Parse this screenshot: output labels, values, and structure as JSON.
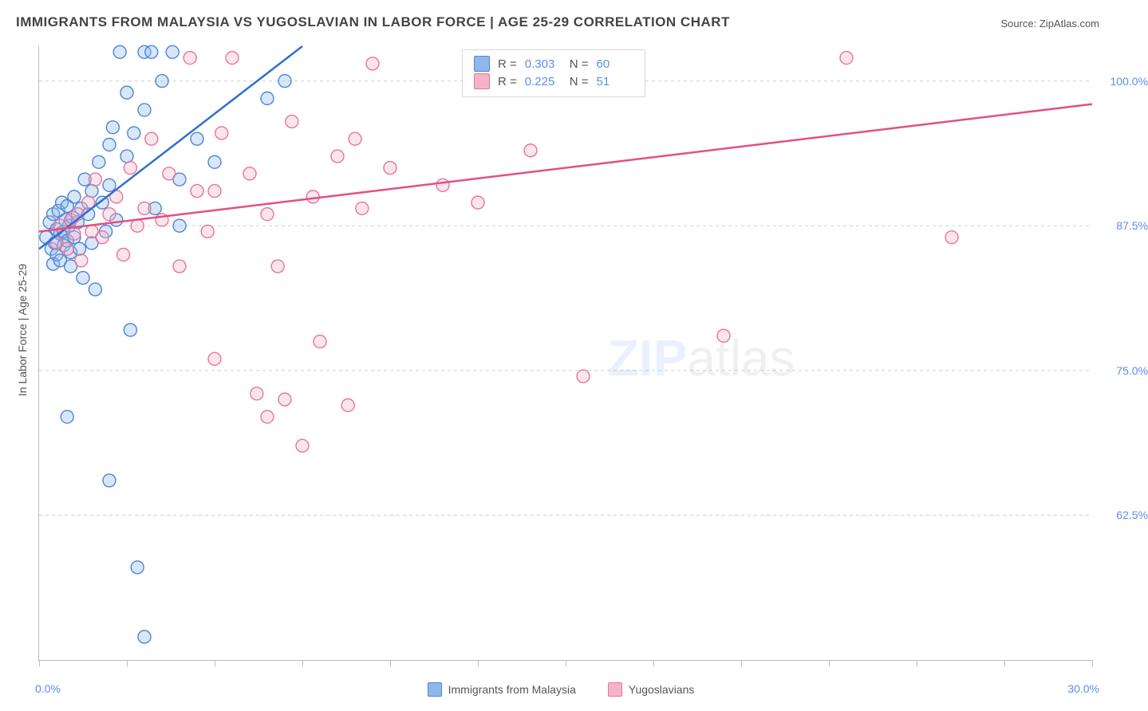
{
  "title": "IMMIGRANTS FROM MALAYSIA VS YUGOSLAVIAN IN LABOR FORCE | AGE 25-29 CORRELATION CHART",
  "source": "Source: ZipAtlas.com",
  "y_axis_label": "In Labor Force | Age 25-29",
  "watermark": {
    "text_a": "ZIP",
    "text_b": "atlas",
    "fontsize": 64
  },
  "chart": {
    "type": "scatter",
    "background_color": "#ffffff",
    "grid_color": "#cfcfcf",
    "axis_color": "#bbbbbb",
    "tick_label_color": "#5b8def",
    "axis_label_color": "#555555",
    "title_fontsize": 17,
    "tick_fontsize": 14,
    "xlim": [
      0,
      30
    ],
    "ylim": [
      50,
      103
    ],
    "xticks": [
      0,
      2.5,
      5,
      7.5,
      10,
      12.5,
      15,
      17.5,
      20,
      22.5,
      25,
      27.5,
      30
    ],
    "xticklabels_shown": {
      "0": "0.0%",
      "30": "30.0%"
    },
    "yticks": [
      62.5,
      75.0,
      87.5,
      100.0
    ],
    "ytick_format": "{v}%",
    "marker_radius": 8,
    "marker_fill_opacity": 0.35,
    "marker_stroke_width": 1.4,
    "trend_line_width": 2.5,
    "series": [
      {
        "key": "malaysia",
        "label": "Immigrants from Malaysia",
        "fill": "#8fb7ea",
        "stroke": "#4b86d6",
        "line_color": "#2f6fd0",
        "R": 0.303,
        "N": 60,
        "trend": {
          "x1": 0,
          "y1": 85.5,
          "x2": 7.5,
          "y2": 103.0
        },
        "points": [
          [
            0.2,
            86.5
          ],
          [
            0.3,
            87.8
          ],
          [
            0.35,
            85.5
          ],
          [
            0.4,
            84.2
          ],
          [
            0.4,
            88.5
          ],
          [
            0.45,
            86.0
          ],
          [
            0.5,
            87.2
          ],
          [
            0.5,
            85.0
          ],
          [
            0.55,
            88.8
          ],
          [
            0.6,
            86.8
          ],
          [
            0.6,
            84.5
          ],
          [
            0.65,
            89.5
          ],
          [
            0.7,
            87.0
          ],
          [
            0.7,
            85.8
          ],
          [
            0.75,
            88.0
          ],
          [
            0.8,
            86.2
          ],
          [
            0.8,
            89.2
          ],
          [
            0.85,
            87.5
          ],
          [
            0.9,
            85.2
          ],
          [
            0.9,
            84.0
          ],
          [
            0.95,
            88.2
          ],
          [
            1.0,
            86.5
          ],
          [
            1.0,
            90.0
          ],
          [
            1.1,
            87.8
          ],
          [
            1.15,
            85.5
          ],
          [
            1.2,
            89.0
          ],
          [
            1.25,
            83.0
          ],
          [
            1.3,
            91.5
          ],
          [
            1.4,
            88.5
          ],
          [
            1.5,
            86.0
          ],
          [
            1.5,
            90.5
          ],
          [
            1.6,
            82.0
          ],
          [
            1.7,
            93.0
          ],
          [
            1.8,
            89.5
          ],
          [
            1.9,
            87.0
          ],
          [
            2.0,
            94.5
          ],
          [
            2.0,
            91.0
          ],
          [
            2.1,
            96.0
          ],
          [
            2.2,
            88.0
          ],
          [
            2.3,
            102.5
          ],
          [
            2.5,
            93.5
          ],
          [
            2.5,
            99.0
          ],
          [
            2.6,
            78.5
          ],
          [
            2.7,
            95.5
          ],
          [
            3.0,
            102.5
          ],
          [
            3.0,
            97.5
          ],
          [
            3.2,
            102.5
          ],
          [
            3.3,
            89.0
          ],
          [
            3.5,
            100.0
          ],
          [
            3.8,
            102.5
          ],
          [
            4.0,
            91.5
          ],
          [
            4.0,
            87.5
          ],
          [
            4.5,
            95.0
          ],
          [
            5.0,
            93.0
          ],
          [
            6.5,
            98.5
          ],
          [
            7.0,
            100.0
          ],
          [
            0.8,
            71.0
          ],
          [
            2.0,
            65.5
          ],
          [
            2.8,
            58.0
          ],
          [
            3.0,
            52.0
          ]
        ]
      },
      {
        "key": "yugoslavia",
        "label": "Yugoslavians",
        "fill": "#f4b4c8",
        "stroke": "#e8749c",
        "line_color": "#e24f85",
        "R": 0.225,
        "N": 51,
        "trend": {
          "x1": 0,
          "y1": 87.0,
          "x2": 30.0,
          "y2": 98.0
        },
        "points": [
          [
            0.5,
            86.0
          ],
          [
            0.6,
            87.5
          ],
          [
            0.8,
            85.5
          ],
          [
            0.9,
            88.0
          ],
          [
            1.0,
            86.8
          ],
          [
            1.1,
            88.5
          ],
          [
            1.2,
            84.5
          ],
          [
            1.4,
            89.5
          ],
          [
            1.5,
            87.0
          ],
          [
            1.6,
            91.5
          ],
          [
            1.8,
            86.5
          ],
          [
            2.0,
            88.5
          ],
          [
            2.2,
            90.0
          ],
          [
            2.4,
            85.0
          ],
          [
            2.6,
            92.5
          ],
          [
            2.8,
            87.5
          ],
          [
            3.0,
            89.0
          ],
          [
            3.2,
            95.0
          ],
          [
            3.5,
            88.0
          ],
          [
            3.7,
            92.0
          ],
          [
            4.0,
            84.0
          ],
          [
            4.3,
            102.0
          ],
          [
            4.5,
            90.5
          ],
          [
            4.8,
            87.0
          ],
          [
            5.0,
            90.5
          ],
          [
            5.2,
            95.5
          ],
          [
            5.5,
            102.0
          ],
          [
            5.0,
            76.0
          ],
          [
            6.0,
            92.0
          ],
          [
            6.2,
            73.0
          ],
          [
            6.5,
            88.5
          ],
          [
            6.5,
            71.0
          ],
          [
            6.8,
            84.0
          ],
          [
            7.0,
            72.5
          ],
          [
            7.2,
            96.5
          ],
          [
            7.5,
            68.5
          ],
          [
            7.8,
            90.0
          ],
          [
            8.0,
            77.5
          ],
          [
            8.5,
            93.5
          ],
          [
            8.8,
            72.0
          ],
          [
            9.0,
            95.0
          ],
          [
            9.2,
            89.0
          ],
          [
            9.5,
            101.5
          ],
          [
            10.0,
            92.5
          ],
          [
            11.5,
            91.0
          ],
          [
            12.5,
            89.5
          ],
          [
            14.0,
            94.0
          ],
          [
            15.5,
            74.5
          ],
          [
            23.0,
            102.0
          ],
          [
            26.0,
            86.5
          ],
          [
            19.5,
            78.0
          ]
        ]
      }
    ]
  },
  "stats_box": {
    "rows": [
      {
        "swatch_fill": "#8fb7ea",
        "swatch_stroke": "#4b86d6",
        "R_label": "R =",
        "R": "0.303",
        "N_label": "N =",
        "N": "60"
      },
      {
        "swatch_fill": "#f4b4c8",
        "swatch_stroke": "#e8749c",
        "R_label": "R =",
        "R": "0.225",
        "N_label": "N =",
        "N": "51"
      }
    ]
  },
  "bottom_legend": [
    {
      "fill": "#8fb7ea",
      "stroke": "#4b86d6",
      "label": "Immigrants from Malaysia"
    },
    {
      "fill": "#f4b4c8",
      "stroke": "#e8749c",
      "label": "Yugoslavians"
    }
  ]
}
